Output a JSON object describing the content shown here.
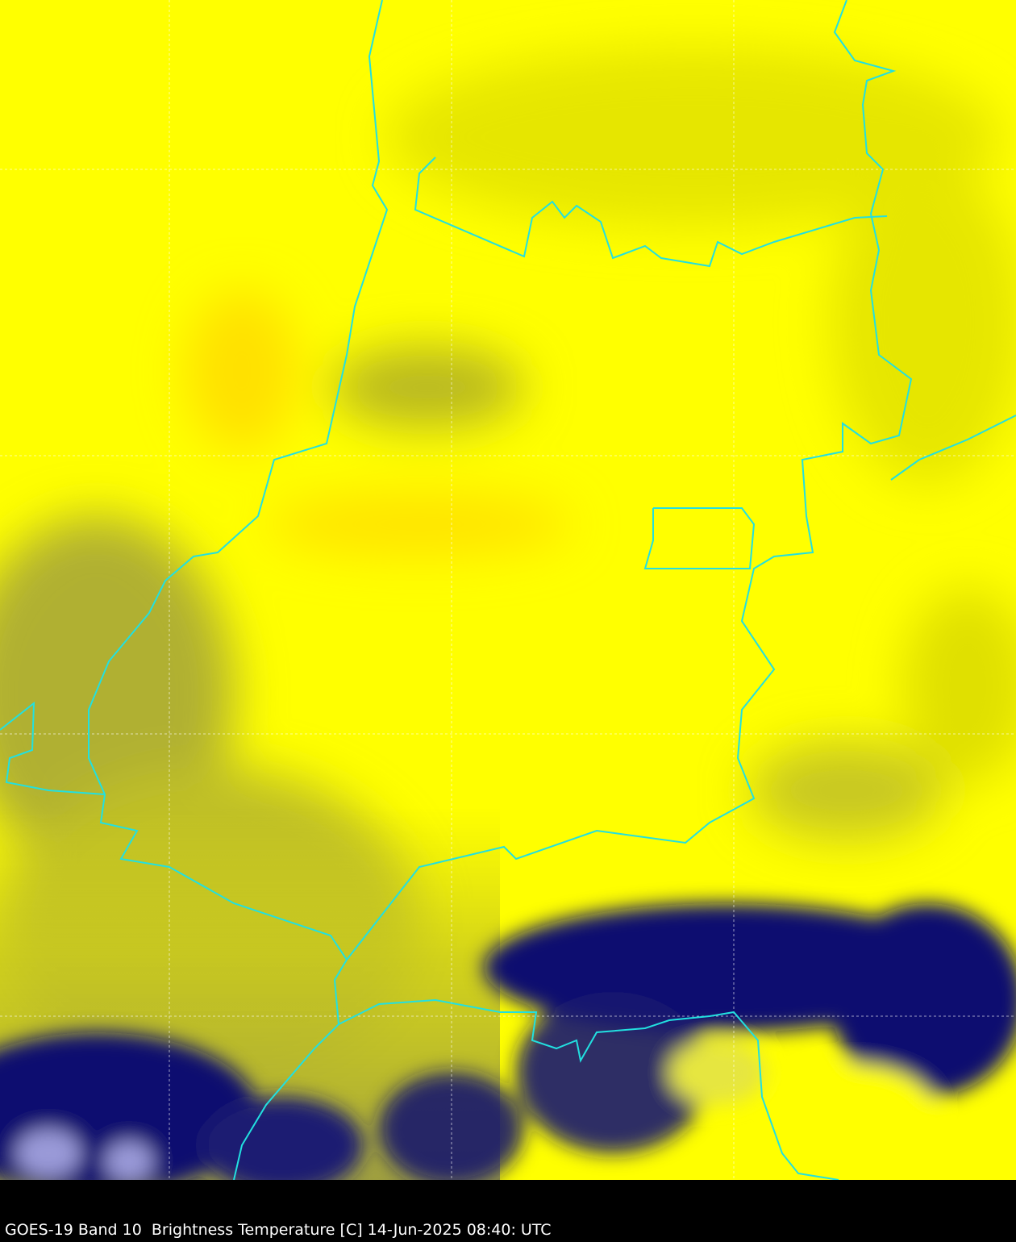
{
  "caption": "GOES-19 Band 10  Brightness Temperature [C] 14-Jun-2025 08:40: UTC",
  "colors": {
    "warm": "#ffff00",
    "mid": "#d4d414",
    "dark": "#8a8a3a",
    "cold": "#0c0c70",
    "coldest": "#9a9ad8",
    "border": "#22e0e0",
    "grid": "#ffffff",
    "background": "#000000"
  }
}
